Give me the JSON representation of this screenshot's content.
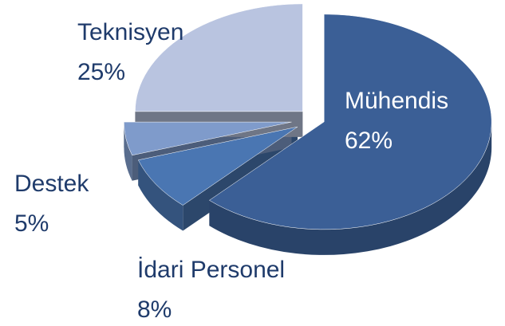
{
  "chart_data": {
    "type": "pie",
    "categories": [
      "Mühendis",
      "İdari Personel",
      "Destek",
      "Teknisyen"
    ],
    "values": [
      62,
      8,
      5,
      25
    ],
    "value_labels": [
      "62%",
      "8%",
      "5%",
      "25%"
    ],
    "colors": [
      "#3b5f96",
      "#4a76b2",
      "#7f9bcb",
      "#b9c4e0"
    ]
  }
}
